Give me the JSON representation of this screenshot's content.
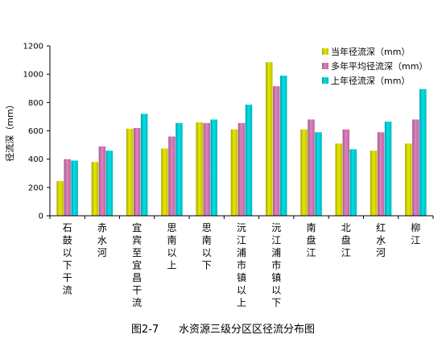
{
  "caption": "图2-7      水资源三级分区区径流分布图",
  "chart_data": {
    "type": "bar",
    "ylabel": "径流深（mm）",
    "ylim": [
      0,
      1200
    ],
    "yticks": [
      0,
      200,
      400,
      600,
      800,
      1000,
      1200
    ],
    "grid": false,
    "legend_position": "top-right",
    "categories": [
      "石鼓以下干流",
      "赤水河",
      "宜宾至宜昌干流",
      "思南以上",
      "思南以下",
      "沅江浦市镇以上",
      "沅江浦市镇以下",
      "南盘江",
      "北盘江",
      "红水河",
      "柳江"
    ],
    "series": [
      {
        "name": "当年径流深（mm）",
        "color": "#e8e800",
        "values": [
          245,
          380,
          615,
          475,
          660,
          610,
          1085,
          610,
          510,
          460,
          510
        ]
      },
      {
        "name": "多年平均径流深（mm）",
        "color": "#e080c0",
        "values": [
          400,
          490,
          620,
          560,
          655,
          655,
          915,
          680,
          610,
          590,
          680
        ]
      },
      {
        "name": "上年径流深（mm）",
        "color": "#00e0e8",
        "values": [
          390,
          460,
          720,
          655,
          680,
          785,
          990,
          590,
          470,
          665,
          895
        ]
      }
    ]
  }
}
